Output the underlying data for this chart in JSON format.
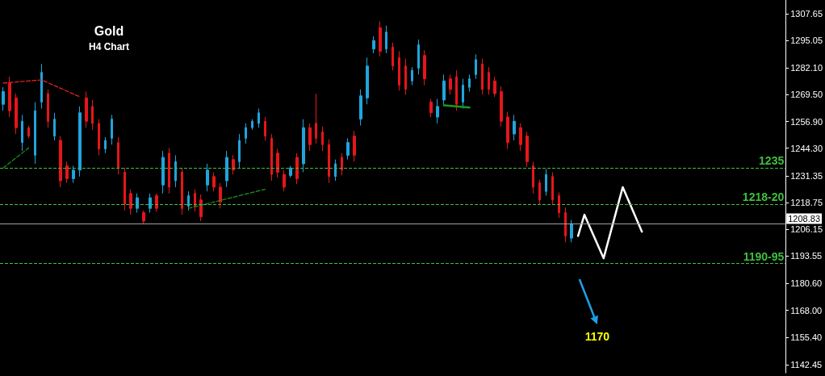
{
  "chart_data": {
    "type": "candlestick",
    "title": "Gold",
    "subtitle": "H4 Chart",
    "categories": [
      null,
      null,
      null,
      null,
      null,
      null,
      null,
      null,
      null,
      null,
      null,
      null,
      null,
      null,
      null,
      null,
      null,
      null,
      null,
      null,
      null,
      null,
      null,
      null,
      null,
      null,
      null,
      null,
      null,
      null,
      null,
      null,
      null,
      null,
      null,
      null,
      null,
      null,
      null,
      null,
      null,
      null,
      null,
      null,
      null,
      null,
      null,
      null,
      null,
      null,
      null,
      null,
      null,
      null,
      null,
      null,
      null,
      null,
      null,
      null,
      null,
      null,
      null,
      null,
      null,
      null,
      null,
      null,
      null,
      null,
      null,
      null,
      null,
      null,
      null,
      null,
      null,
      null,
      null,
      null,
      null,
      null,
      null,
      null,
      null,
      null,
      null,
      null,
      null,
      null,
      null,
      null,
      null,
      null,
      null,
      null,
      null,
      null,
      null,
      null,
      null,
      null,
      null,
      null,
      null,
      null,
      null,
      null,
      null,
      null,
      null,
      null,
      null,
      null,
      null,
      null,
      null,
      null,
      null,
      null,
      null,
      null,
      null
    ],
    "series": [
      {
        "ohlc": [
          [
            1265,
            1273,
            1262,
            1271
          ],
          [
            1275,
            1278,
            1259,
            1262
          ],
          [
            1268,
            1270,
            1251,
            1254
          ],
          [
            1247,
            1260,
            1243,
            1257
          ],
          [
            1254,
            1255,
            1249,
            1250
          ],
          [
            1241,
            1266,
            1237,
            1262
          ],
          [
            1266,
            1284,
            1263,
            1280
          ],
          [
            1270,
            1272,
            1254,
            1257
          ],
          [
            1250,
            1261,
            1248,
            1258
          ],
          [
            1248,
            1250,
            1226,
            1229
          ],
          [
            1236,
            1238,
            1228,
            1230
          ],
          [
            1230,
            1236,
            1228,
            1234
          ],
          [
            1234,
            1264,
            1231,
            1261
          ],
          [
            1268,
            1271,
            1254,
            1257
          ],
          [
            1264,
            1267,
            1253,
            1256
          ],
          [
            1256,
            1258,
            1241,
            1244
          ],
          [
            1244,
            1249.5,
            1242,
            1248
          ],
          [
            1249,
            1260,
            1246,
            1258
          ],
          [
            1247,
            1249.5,
            1232,
            1235
          ],
          [
            1233,
            1235,
            1215,
            1218
          ],
          [
            1223,
            1225,
            1213,
            1216
          ],
          [
            1216,
            1223,
            1214,
            1221
          ],
          [
            1214,
            1215,
            1208.5,
            1210
          ],
          [
            1216,
            1223,
            1214,
            1221
          ],
          [
            1222,
            1223,
            1214.5,
            1216
          ],
          [
            1227,
            1243,
            1223,
            1240
          ],
          [
            1242,
            1244.5,
            1223,
            1226
          ],
          [
            1229,
            1241,
            1226,
            1238
          ],
          [
            1233,
            1235,
            1213,
            1216
          ],
          [
            1217,
            1224,
            1215,
            1222
          ],
          [
            1223,
            1225,
            1214.5,
            1217
          ],
          [
            1220,
            1222.5,
            1210,
            1212
          ],
          [
            1227,
            1237,
            1224,
            1234
          ],
          [
            1231,
            1233,
            1224,
            1226
          ],
          [
            1226,
            1228,
            1216,
            1219
          ],
          [
            1229,
            1243,
            1226,
            1240
          ],
          [
            1239,
            1241,
            1232,
            1234
          ],
          [
            1238,
            1251,
            1235,
            1248
          ],
          [
            1249,
            1256,
            1246.5,
            1254
          ],
          [
            1254,
            1258,
            1253,
            1257
          ],
          [
            1256,
            1263,
            1254,
            1261
          ],
          [
            1257,
            1259,
            1248,
            1250
          ],
          [
            1249,
            1251,
            1229,
            1232
          ],
          [
            1242,
            1244,
            1230.5,
            1233
          ],
          [
            1232,
            1234,
            1224,
            1226
          ],
          [
            1231.5,
            1236,
            1230.5,
            1235
          ],
          [
            1240,
            1242,
            1227.5,
            1230
          ],
          [
            1237,
            1258,
            1233,
            1254
          ],
          [
            1254,
            1256,
            1243,
            1246
          ],
          [
            1256,
            1270,
            1246.5,
            1249
          ],
          [
            1252,
            1254.5,
            1243,
            1246
          ],
          [
            1246,
            1248.5,
            1228,
            1231
          ],
          [
            1231,
            1239,
            1229,
            1237
          ],
          [
            1240,
            1242,
            1231.5,
            1234
          ],
          [
            1241,
            1249,
            1239,
            1247
          ],
          [
            1250,
            1252.5,
            1238,
            1241
          ],
          [
            1258,
            1272,
            1255,
            1269
          ],
          [
            1268,
            1287,
            1265,
            1283
          ],
          [
            1291,
            1297,
            1289,
            1295
          ],
          [
            1301,
            1304,
            1287.5,
            1290
          ],
          [
            1291,
            1302,
            1289,
            1299
          ],
          [
            1292,
            1294,
            1281,
            1283
          ],
          [
            1287,
            1290,
            1271.5,
            1274
          ],
          [
            1283,
            1286.5,
            1269.5,
            1272
          ],
          [
            1276,
            1282.5,
            1274,
            1281
          ],
          [
            1282,
            1295.5,
            1279,
            1293
          ],
          [
            1288,
            1290.5,
            1274,
            1277
          ],
          [
            1266,
            1267.5,
            1259,
            1261
          ],
          [
            1259,
            1267.5,
            1256,
            1264
          ],
          [
            1267,
            1279,
            1264.5,
            1276
          ],
          [
            1277,
            1279,
            1269.5,
            1272
          ],
          [
            1278,
            1281,
            1262,
            1265
          ],
          [
            1266,
            1277,
            1263,
            1274
          ],
          [
            1273,
            1279,
            1271,
            1277
          ],
          [
            1279,
            1288.5,
            1277,
            1286
          ],
          [
            1284,
            1286.5,
            1269.5,
            1272
          ],
          [
            1280,
            1282.5,
            1269.5,
            1272
          ],
          [
            1276,
            1278,
            1268.5,
            1270
          ],
          [
            1271,
            1273.5,
            1254.5,
            1257
          ],
          [
            1259,
            1261.5,
            1244,
            1247
          ],
          [
            1251,
            1260,
            1248,
            1257
          ],
          [
            1254,
            1256,
            1243,
            1246
          ],
          [
            1250,
            1252,
            1235.5,
            1238
          ],
          [
            1236,
            1238,
            1223,
            1226
          ],
          [
            1228,
            1229.5,
            1218,
            1220
          ],
          [
            1224,
            1234.5,
            1222,
            1232
          ],
          [
            1231,
            1233,
            1218,
            1220
          ],
          [
            1222,
            1223.5,
            1211.5,
            1214
          ],
          [
            1214,
            1216.5,
            1200,
            1203
          ],
          [
            1202,
            1210.5,
            1200,
            1208.8
          ],
          null,
          null,
          null,
          null,
          null,
          null,
          null,
          null,
          null,
          null,
          null,
          null,
          null,
          null,
          null,
          null,
          null,
          null,
          null,
          null,
          null,
          null,
          null,
          null,
          null,
          null,
          null,
          null,
          null,
          null,
          null,
          null,
          null
        ],
        "colors": [
          "#21a4dc",
          "#e5161b",
          "#e5161b",
          "#21a4dc",
          "#e5161b",
          "#21a4dc",
          "#21a4dc",
          "#e5161b",
          "#21a4dc",
          "#e5161b",
          "#e5161b",
          "#21a4dc",
          "#21a4dc",
          "#e5161b",
          "#e5161b",
          "#e5161b",
          "#21a4dc",
          "#21a4dc",
          "#e5161b",
          "#e5161b",
          "#e5161b",
          "#21a4dc",
          "#e5161b",
          "#21a4dc",
          "#e5161b",
          "#21a4dc",
          "#e5161b",
          "#21a4dc",
          "#e5161b",
          "#21a4dc",
          "#e5161b",
          "#e5161b",
          "#21a4dc",
          "#e5161b",
          "#e5161b",
          "#21a4dc",
          "#e5161b",
          "#21a4dc",
          "#21a4dc",
          "#21a4dc",
          "#21a4dc",
          "#e5161b",
          "#e5161b",
          "#e5161b",
          "#e5161b",
          "#21a4dc",
          "#e5161b",
          "#21a4dc",
          "#e5161b",
          "#e5161b",
          "#e5161b",
          "#e5161b",
          "#21a4dc",
          "#e5161b",
          "#21a4dc",
          "#e5161b",
          "#21a4dc",
          "#21a4dc",
          "#21a4dc",
          "#e5161b",
          "#21a4dc",
          "#e5161b",
          "#e5161b",
          "#e5161b",
          "#21a4dc",
          "#21a4dc",
          "#e5161b",
          "#e5161b",
          "#21a4dc",
          "#21a4dc",
          "#e5161b",
          "#e5161b",
          "#21a4dc",
          "#21a4dc",
          "#21a4dc",
          "#e5161b",
          "#e5161b",
          "#e5161b",
          "#e5161b",
          "#e5161b",
          "#21a4dc",
          "#e5161b",
          "#e5161b",
          "#e5161b",
          "#e5161b",
          "#21a4dc",
          "#e5161b",
          "#e5161b",
          "#e5161b",
          "#21a4dc",
          null,
          null,
          null,
          null,
          null,
          null,
          null,
          null,
          null,
          null,
          null,
          null,
          null,
          null,
          null,
          null,
          null,
          null,
          null,
          null,
          null,
          null,
          null,
          null,
          null,
          null,
          null,
          null,
          null,
          null,
          null,
          null,
          null
        ]
      },
      {
        "type": "line",
        "color": "#ff2020",
        "line_style": "dashed",
        "values": [
          1275,
          null,
          null,
          null,
          null,
          null,
          1276.5,
          null,
          null,
          null,
          null,
          null,
          1268.5,
          null,
          null,
          null,
          null,
          null,
          null,
          null,
          null,
          null,
          null,
          null,
          null,
          null,
          null,
          null,
          null,
          null,
          null,
          null,
          null,
          null,
          null,
          null,
          null,
          null,
          null,
          null,
          null,
          null,
          null,
          null,
          null,
          null,
          null,
          null,
          null,
          null,
          null,
          null,
          null,
          null,
          null,
          null,
          null,
          null,
          null,
          null,
          null,
          null,
          null,
          null,
          null,
          null,
          null,
          null,
          null,
          null,
          null,
          null,
          null,
          null,
          null,
          null,
          null,
          null,
          null,
          null,
          null,
          null,
          null,
          null,
          null,
          null,
          null,
          null,
          null,
          null,
          null,
          null,
          null,
          null,
          null,
          null,
          null,
          null,
          null,
          null,
          null,
          null,
          null,
          null,
          null,
          null,
          null,
          null,
          null,
          null,
          null,
          null,
          null,
          null,
          null,
          null,
          null,
          null,
          null,
          null,
          null,
          null,
          null
        ]
      },
      {
        "type": "line",
        "color": "#1a9a1a",
        "line_style": "dashed",
        "values": [
          1235,
          null,
          null,
          null,
          1244.5,
          null,
          null,
          null,
          null,
          null,
          null,
          null,
          null,
          null,
          null,
          null,
          null,
          null,
          null,
          null,
          null,
          null,
          null,
          null,
          null,
          null,
          null,
          null,
          null,
          null,
          null,
          null,
          null,
          null,
          null,
          null,
          null,
          null,
          null,
          null,
          null,
          null,
          null,
          null,
          null,
          null,
          null,
          null,
          null,
          null,
          null,
          null,
          null,
          null,
          null,
          null,
          null,
          null,
          null,
          null,
          null,
          null,
          null,
          null,
          null,
          null,
          null,
          null,
          null,
          null,
          null,
          null,
          null,
          null,
          null,
          null,
          null,
          null,
          null,
          null,
          null,
          null,
          null,
          null,
          null,
          null,
          null,
          null,
          null,
          null,
          null,
          null,
          null,
          null,
          null,
          null,
          null,
          null,
          null,
          null,
          null,
          null,
          null,
          null,
          null,
          null,
          null,
          null,
          null,
          null,
          null,
          null,
          null,
          null,
          null,
          null,
          null,
          null,
          null,
          null,
          null,
          null,
          null
        ]
      },
      {
        "type": "line",
        "color": "#1a9a1a",
        "line_style": "dashed",
        "values": [
          null,
          null,
          null,
          null,
          null,
          null,
          null,
          null,
          null,
          null,
          null,
          null,
          null,
          null,
          null,
          null,
          null,
          null,
          null,
          null,
          null,
          null,
          null,
          null,
          null,
          null,
          null,
          null,
          null,
          1216,
          null,
          null,
          null,
          null,
          null,
          null,
          null,
          null,
          null,
          null,
          null,
          1225,
          null,
          null,
          null,
          null,
          null,
          null,
          null,
          null,
          null,
          null,
          null,
          null,
          null,
          null,
          null,
          null,
          null,
          null,
          null,
          null,
          null,
          null,
          null,
          null,
          null,
          null,
          null,
          null,
          null,
          null,
          null,
          null,
          null,
          null,
          null,
          null,
          null,
          null,
          null,
          null,
          null,
          null,
          null,
          null,
          null,
          null,
          null,
          null,
          null,
          null,
          null,
          null,
          null,
          null,
          null,
          null,
          null,
          null,
          null,
          null,
          null,
          null,
          null,
          null,
          null,
          null,
          null,
          null,
          null,
          null,
          null,
          null,
          null,
          null,
          null,
          null,
          null,
          null,
          null,
          null,
          null
        ]
      },
      {
        "type": "line",
        "color": "#1a9a1a",
        "line_style": "solid",
        "values": [
          null,
          null,
          null,
          null,
          null,
          null,
          null,
          null,
          null,
          null,
          null,
          null,
          null,
          null,
          null,
          null,
          null,
          null,
          null,
          null,
          null,
          null,
          null,
          null,
          null,
          null,
          null,
          null,
          null,
          null,
          null,
          null,
          null,
          null,
          null,
          null,
          null,
          null,
          null,
          null,
          null,
          null,
          null,
          null,
          null,
          null,
          null,
          null,
          null,
          null,
          null,
          null,
          null,
          null,
          null,
          null,
          null,
          null,
          null,
          null,
          null,
          null,
          null,
          null,
          null,
          null,
          null,
          null,
          null,
          1264.5,
          null,
          null,
          null,
          1263.5,
          null,
          null,
          null,
          null,
          null,
          null,
          null,
          null,
          null,
          null,
          null,
          null,
          null,
          null,
          null,
          null,
          null,
          null,
          null,
          null,
          null,
          null,
          null,
          null,
          null,
          null,
          null,
          null,
          null,
          null,
          null,
          null,
          null,
          null,
          null,
          null,
          null,
          null,
          null,
          null,
          null,
          null,
          null,
          null,
          null,
          null,
          null,
          null,
          null
        ]
      },
      {
        "type": "line",
        "color": "#ffffff",
        "line_style": "solid",
        "values": [
          null,
          null,
          null,
          null,
          null,
          null,
          null,
          null,
          null,
          null,
          null,
          null,
          null,
          null,
          null,
          null,
          null,
          null,
          null,
          null,
          null,
          null,
          null,
          null,
          null,
          null,
          null,
          null,
          null,
          null,
          null,
          null,
          null,
          null,
          null,
          null,
          null,
          null,
          null,
          null,
          null,
          null,
          null,
          null,
          null,
          null,
          null,
          null,
          null,
          null,
          null,
          null,
          null,
          null,
          null,
          null,
          null,
          null,
          null,
          null,
          null,
          null,
          null,
          null,
          null,
          null,
          null,
          null,
          null,
          null,
          null,
          null,
          null,
          null,
          null,
          null,
          null,
          null,
          null,
          null,
          null,
          null,
          null,
          null,
          null,
          null,
          null,
          null,
          null,
          null,
          1203,
          1213,
          null,
          null,
          1192.5,
          null,
          null,
          1226,
          null,
          null,
          1205,
          null,
          null,
          null,
          null,
          null,
          null,
          null,
          null,
          null,
          null,
          null,
          null,
          null,
          null,
          null,
          null,
          null,
          null,
          null,
          null,
          null,
          null
        ]
      }
    ],
    "ylim": [
      1138.6,
      1314.1
    ],
    "yticks": [
      1307.65,
      1295.05,
      {
        "value": 1282.1,
        "label": "1282.10"
      },
      {
        "value": 1269.5,
        "label": "1269.50"
      },
      {
        "value": 1256.9,
        "label": "1256.90"
      },
      {
        "value": 1244.3,
        "label": "1244.30"
      },
      1231.35,
      1218.75,
      1206.15,
      1193.55,
      {
        "value": 1180.6,
        "label": "1180.60"
      },
      {
        "value": 1168,
        "label": "1168.00"
      },
      {
        "value": 1155.4,
        "label": "1155.40"
      },
      1142.45
    ],
    "ref_lines": [
      {
        "axis": "y",
        "value": 1235,
        "label": "1235",
        "color": "#3fbf3f",
        "line_style": "dashed"
      },
      {
        "axis": "y",
        "value": 1218,
        "label": "1218-20",
        "color": "#3fbf3f",
        "line_style": "dashed"
      },
      {
        "axis": "y",
        "value": 1190,
        "label": "1190-95",
        "color": "#3fbf3f",
        "line_style": "dashed"
      },
      {
        "axis": "y",
        "value": 1208.83,
        "label": "1208.83",
        "color": "#a0a0a0",
        "line_style": "solid"
      }
    ],
    "annotations": [
      "1170"
    ],
    "tick_labels": "y"
  }
}
